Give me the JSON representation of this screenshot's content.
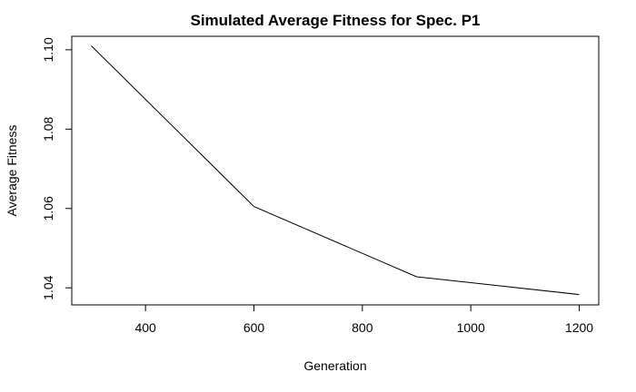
{
  "chart_data": {
    "type": "line",
    "title": "Simulated Average Fitness for Spec. P1",
    "xlabel": "Generation",
    "ylabel": "Average Fitness",
    "xlim": [
      264,
      1236
    ],
    "ylim": [
      1.0357,
      1.1034
    ],
    "x_ticks": [
      400,
      600,
      800,
      1000,
      1200
    ],
    "y_ticks": [
      1.04,
      1.06,
      1.08,
      1.1
    ],
    "x_tick_labels": [
      "400",
      "600",
      "800",
      "1000",
      "1200"
    ],
    "y_tick_labels": [
      "1.04",
      "1.06",
      "1.08",
      "1.10"
    ],
    "grid": false,
    "legend": "none",
    "series": [
      {
        "x": [
          300,
          600,
          900,
          1200
        ],
        "y": [
          1.101,
          1.0605,
          1.0428,
          1.0383
        ],
        "color": "#000000"
      }
    ]
  }
}
